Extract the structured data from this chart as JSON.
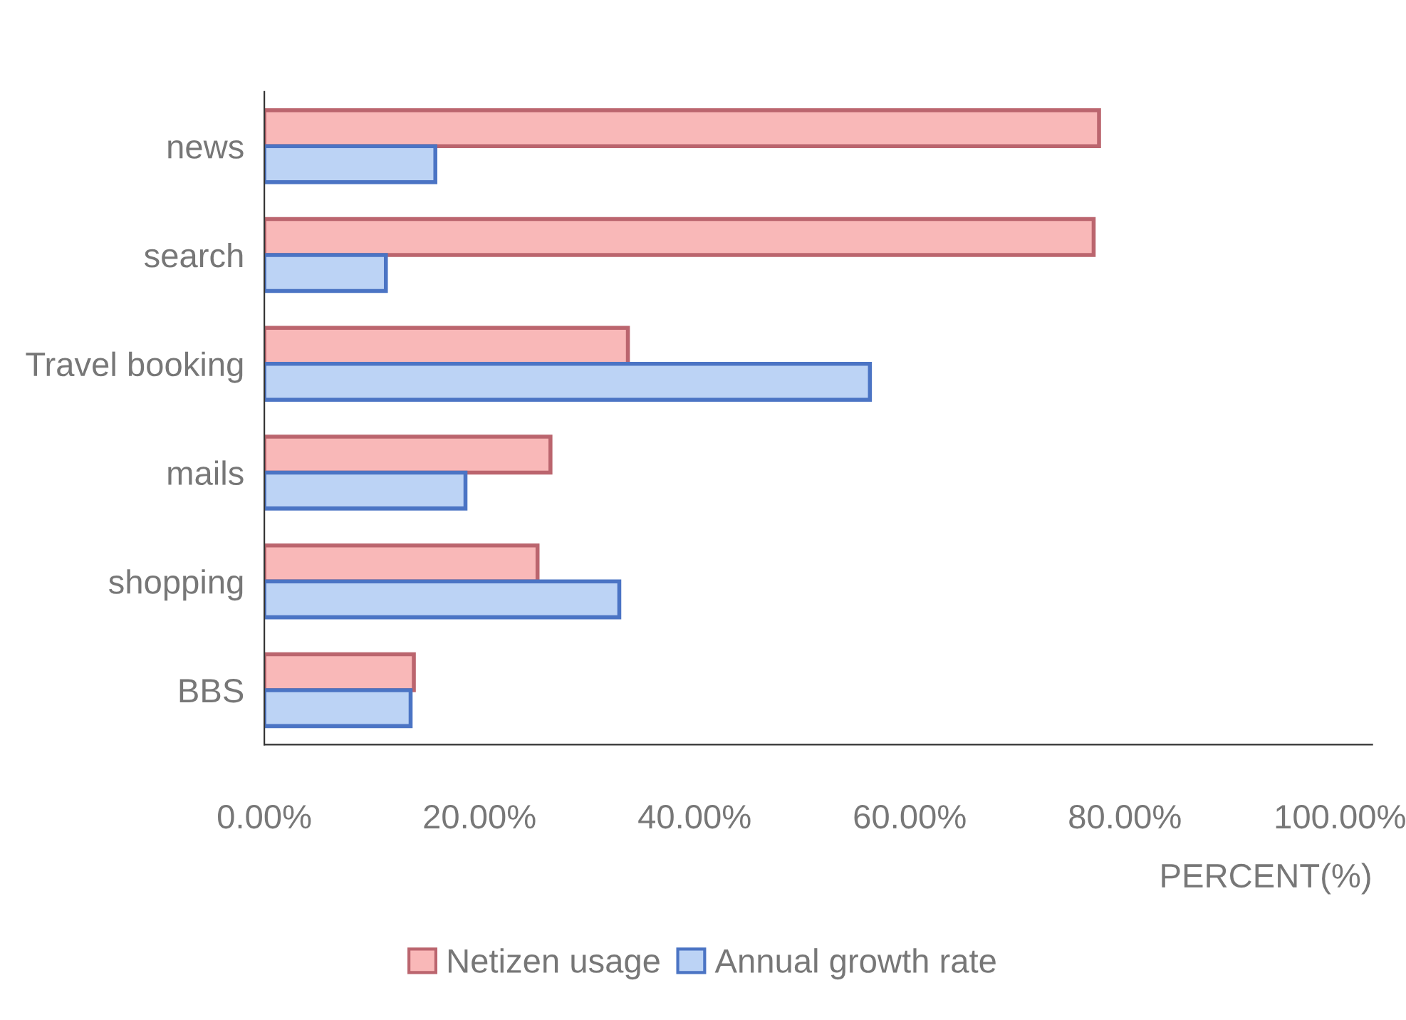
{
  "chart_data": {
    "type": "bar",
    "orientation": "horizontal",
    "categories": [
      "news",
      "search",
      "Travel booking",
      "mails",
      "shopping",
      "BBS"
    ],
    "series": [
      {
        "name": "Netizen usage",
        "color": "#f9b8b8",
        "values": [
          77.6,
          77.1,
          33.8,
          26.6,
          25.4,
          13.9
        ]
      },
      {
        "name": "Annual growth rate",
        "color": "#bcd3f5",
        "values": [
          15.9,
          11.3,
          56.3,
          18.7,
          33.0,
          13.6
        ]
      }
    ],
    "xlim": [
      0,
      103
    ],
    "xticks": [
      {
        "value": 0,
        "label": "0.00%"
      },
      {
        "value": 20,
        "label": "20.00%"
      },
      {
        "value": 40,
        "label": "40.00%"
      },
      {
        "value": 60,
        "label": "60.00%"
      },
      {
        "value": 80,
        "label": "80.00%"
      },
      {
        "value": 100,
        "label": "100.00%"
      }
    ],
    "xlabel": "PERCENT(%)",
    "legend": "bottom",
    "grid": false
  }
}
